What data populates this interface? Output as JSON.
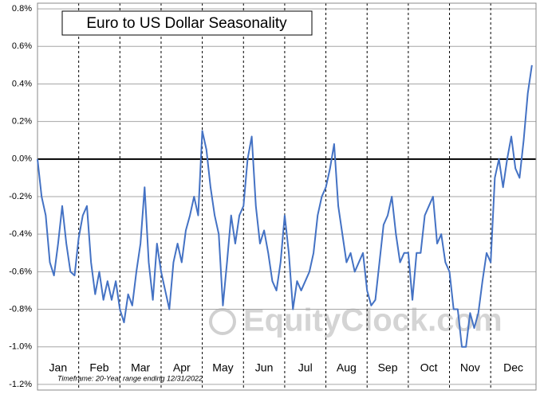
{
  "chart_data": {
    "type": "line",
    "title": "Euro to US Dollar Seasonality",
    "subtitle": "Timeframe: 20-Year range ending 12/31/2022",
    "watermark": "EquityClock.com",
    "xlim": [
      0,
      12.1
    ],
    "xticks": [
      {
        "value": 0,
        "label": "Jan"
      },
      {
        "value": 1,
        "label": "Feb"
      },
      {
        "value": 2,
        "label": "Mar"
      },
      {
        "value": 3,
        "label": "Apr"
      },
      {
        "value": 4,
        "label": "May"
      },
      {
        "value": 5,
        "label": "Jun"
      },
      {
        "value": 6,
        "label": "Jul"
      },
      {
        "value": 7,
        "label": "Aug"
      },
      {
        "value": 8,
        "label": "Sep"
      },
      {
        "value": 9,
        "label": "Oct"
      },
      {
        "value": 10,
        "label": "Nov"
      },
      {
        "value": 11,
        "label": "Dec"
      }
    ],
    "ylim": [
      -1.23,
      0.83
    ],
    "yticks": [
      {
        "value": 0.8,
        "label": "0.8%"
      },
      {
        "value": 0.6,
        "label": "0.6%"
      },
      {
        "value": 0.4,
        "label": "0.4%"
      },
      {
        "value": 0.2,
        "label": "0.2%"
      },
      {
        "value": 0,
        "label": "0.0%"
      },
      {
        "value": -0.2,
        "label": "-0.2%"
      },
      {
        "value": -0.4,
        "label": "-0.4%"
      },
      {
        "value": -0.6,
        "label": "-0.6%"
      },
      {
        "value": -0.8,
        "label": "-0.8%"
      },
      {
        "value": -1.0,
        "label": "-1.0%"
      },
      {
        "value": -1.2,
        "label": "-1.2%"
      }
    ],
    "grid": true,
    "color": "#4472c4",
    "x": [
      0,
      0.1,
      0.2,
      0.3,
      0.4,
      0.5,
      0.6,
      0.7,
      0.8,
      0.9,
      1,
      1.1,
      1.2,
      1.3,
      1.4,
      1.5,
      1.6,
      1.7,
      1.8,
      1.9,
      2,
      2.1,
      2.2,
      2.3,
      2.4,
      2.5,
      2.6,
      2.7,
      2.8,
      2.9,
      3,
      3.1,
      3.2,
      3.3,
      3.4,
      3.5,
      3.6,
      3.7,
      3.8,
      3.9,
      4,
      4.1,
      4.2,
      4.3,
      4.4,
      4.5,
      4.6,
      4.7,
      4.8,
      4.9,
      5,
      5.1,
      5.2,
      5.3,
      5.4,
      5.5,
      5.6,
      5.7,
      5.8,
      5.9,
      6,
      6.1,
      6.2,
      6.3,
      6.4,
      6.5,
      6.6,
      6.7,
      6.8,
      6.9,
      7,
      7.1,
      7.2,
      7.3,
      7.4,
      7.5,
      7.6,
      7.7,
      7.8,
      7.9,
      8,
      8.1,
      8.2,
      8.3,
      8.4,
      8.5,
      8.6,
      8.7,
      8.8,
      8.9,
      9,
      9.1,
      9.2,
      9.3,
      9.4,
      9.5,
      9.6,
      9.7,
      9.8,
      9.9,
      10,
      10.1,
      10.2,
      10.3,
      10.4,
      10.5,
      10.6,
      10.7,
      10.8,
      10.9,
      11,
      11.1,
      11.2,
      11.3,
      11.4,
      11.5,
      11.6,
      11.7,
      11.8,
      11.9,
      12
    ],
    "values": [
      0,
      -0.2,
      -0.3,
      -0.55,
      -0.62,
      -0.45,
      -0.25,
      -0.45,
      -0.6,
      -0.62,
      -0.42,
      -0.3,
      -0.25,
      -0.55,
      -0.72,
      -0.6,
      -0.75,
      -0.65,
      -0.75,
      -0.65,
      -0.8,
      -0.87,
      -0.72,
      -0.78,
      -0.6,
      -0.45,
      -0.15,
      -0.55,
      -0.75,
      -0.45,
      -0.6,
      -0.7,
      -0.8,
      -0.55,
      -0.45,
      -0.55,
      -0.38,
      -0.3,
      -0.2,
      -0.3,
      0.15,
      0.05,
      -0.15,
      -0.3,
      -0.4,
      -0.78,
      -0.55,
      -0.3,
      -0.45,
      -0.3,
      -0.25,
      0,
      0.12,
      -0.25,
      -0.45,
      -0.38,
      -0.5,
      -0.65,
      -0.7,
      -0.55,
      -0.3,
      -0.5,
      -0.8,
      -0.65,
      -0.7,
      -0.65,
      -0.6,
      -0.5,
      -0.3,
      -0.2,
      -0.15,
      -0.05,
      0.08,
      -0.25,
      -0.4,
      -0.55,
      -0.5,
      -0.6,
      -0.55,
      -0.5,
      -0.7,
      -0.78,
      -0.75,
      -0.55,
      -0.35,
      -0.3,
      -0.2,
      -0.4,
      -0.55,
      -0.5,
      -0.5,
      -0.75,
      -0.5,
      -0.5,
      -0.3,
      -0.25,
      -0.2,
      -0.45,
      -0.4,
      -0.55,
      -0.6,
      -0.8,
      -0.8,
      -1,
      -1,
      -0.82,
      -0.9,
      -0.82,
      -0.65,
      -0.5,
      -0.55,
      -0.1,
      0,
      -0.15,
      0,
      0.12,
      -0.05,
      -0.1,
      0.1,
      0.35,
      0.5
    ]
  }
}
